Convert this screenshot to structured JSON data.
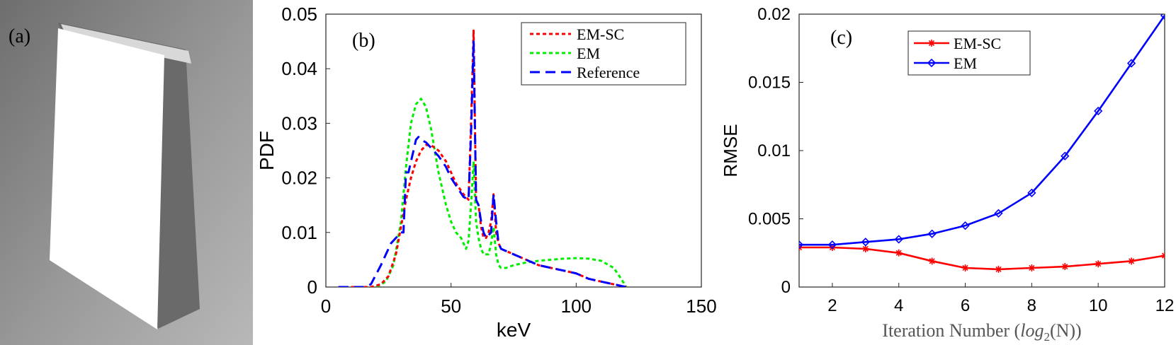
{
  "panels": {
    "a": {
      "label": "(a)"
    },
    "b": {
      "label": "(b)"
    },
    "c": {
      "label": "(c)"
    }
  },
  "colors": {
    "em_sc": "#ff0000",
    "em": "#00ee00",
    "reference": "#0000ff",
    "em_c": "#0000ff"
  },
  "chart_data": [
    {
      "type": "line",
      "panel": "b",
      "title": "",
      "xlabel": "keV",
      "ylabel": "PDF",
      "xlim": [
        0,
        150
      ],
      "ylim": [
        0,
        0.05
      ],
      "xticks": [
        0,
        50,
        100,
        150
      ],
      "xtick_labels": [
        "0",
        "50",
        "100",
        "150"
      ],
      "yticks": [
        0,
        0.01,
        0.02,
        0.03,
        0.04,
        0.05
      ],
      "ytick_labels": [
        "0",
        "0.01",
        "0.02",
        "0.03",
        "0.04",
        "0.05"
      ],
      "grid": false,
      "legend_position": "top-right",
      "series": [
        {
          "name": "EM-SC",
          "style": "dotted",
          "x": [
            5,
            18,
            22,
            25,
            28,
            30,
            32,
            34,
            36,
            38,
            40,
            42,
            45,
            48,
            50,
            52,
            55,
            57,
            58,
            59,
            60,
            61,
            62,
            63,
            64,
            65,
            66,
            67,
            68,
            69,
            70,
            75,
            80,
            85,
            90,
            95,
            100,
            105,
            110,
            115,
            120
          ],
          "y": [
            0,
            0,
            0.0005,
            0.002,
            0.006,
            0.011,
            0.016,
            0.02,
            0.023,
            0.025,
            0.026,
            0.026,
            0.025,
            0.023,
            0.021,
            0.019,
            0.017,
            0.016,
            0.03,
            0.047,
            0.016,
            0.015,
            0.011,
            0.009,
            0.009,
            0.01,
            0.012,
            0.017,
            0.01,
            0.008,
            0.007,
            0.006,
            0.005,
            0.004,
            0.0035,
            0.003,
            0.0025,
            0.0015,
            0.001,
            0.0005,
            0
          ]
        },
        {
          "name": "EM",
          "style": "dotted",
          "x": [
            5,
            20,
            24,
            27,
            30,
            32,
            34,
            36,
            38,
            40,
            42,
            45,
            48,
            50,
            52,
            54,
            56,
            57,
            58,
            59,
            60,
            61,
            62,
            63,
            65,
            66,
            67,
            68,
            69,
            70,
            72,
            75,
            80,
            85,
            90,
            95,
            100,
            105,
            110,
            115,
            118,
            120
          ],
          "y": [
            0,
            0,
            0.001,
            0.004,
            0.012,
            0.022,
            0.03,
            0.0335,
            0.0345,
            0.033,
            0.029,
            0.021,
            0.015,
            0.012,
            0.01,
            0.009,
            0.007,
            0.0085,
            0.015,
            0.023,
            0.012,
            0.009,
            0.007,
            0.006,
            0.006,
            0.008,
            0.011,
            0.006,
            0.004,
            0.0035,
            0.0035,
            0.004,
            0.0045,
            0.0048,
            0.005,
            0.0052,
            0.0053,
            0.0052,
            0.0048,
            0.0035,
            0.0015,
            0
          ]
        },
        {
          "name": "Reference",
          "style": "dashed",
          "x": [
            5,
            15,
            18,
            22,
            26,
            30,
            31,
            32,
            33,
            34,
            35,
            36,
            37,
            38,
            40,
            42,
            45,
            48,
            50,
            55,
            57,
            58,
            59,
            60,
            61,
            62,
            63,
            64,
            66,
            67,
            68,
            69,
            70,
            75,
            80,
            85,
            90,
            95,
            100,
            105,
            110,
            115,
            120
          ],
          "y": [
            0,
            0,
            0.0005,
            0.004,
            0.008,
            0.01,
            0.01,
            0.021,
            0.021,
            0.023,
            0.025,
            0.027,
            0.0275,
            0.027,
            0.0265,
            0.0255,
            0.024,
            0.022,
            0.02,
            0.0165,
            0.016,
            0.028,
            0.045,
            0.016,
            0.015,
            0.012,
            0.01,
            0.009,
            0.01,
            0.017,
            0.012,
            0.008,
            0.007,
            0.006,
            0.005,
            0.004,
            0.0035,
            0.003,
            0.0025,
            0.0015,
            0.001,
            0.0005,
            0
          ]
        }
      ]
    },
    {
      "type": "line",
      "panel": "c",
      "title": "",
      "xlabel": "Iteration Number (log2(N))",
      "xlabel_parts": {
        "text": "Iteration Number ",
        "open": "(",
        "func": "log",
        "sub": "2",
        "arg": "(N))"
      },
      "ylabel": "RMSE",
      "xlim": [
        1,
        12
      ],
      "ylim": [
        0,
        0.02
      ],
      "xticks": [
        2,
        4,
        6,
        8,
        10,
        12
      ],
      "xtick_labels": [
        "2",
        "4",
        "6",
        "8",
        "10",
        "12"
      ],
      "yticks": [
        0,
        0.005,
        0.01,
        0.015,
        0.02
      ],
      "ytick_labels": [
        "0",
        "0.005",
        "0.01",
        "0.015",
        "0.02"
      ],
      "grid": false,
      "legend_position": "top-center",
      "series": [
        {
          "name": "EM-SC",
          "marker": "asterisk",
          "x": [
            1,
            2,
            3,
            4,
            5,
            6,
            7,
            8,
            9,
            10,
            11,
            12
          ],
          "y": [
            0.0029,
            0.0029,
            0.0028,
            0.0025,
            0.0019,
            0.0014,
            0.0013,
            0.0014,
            0.0015,
            0.0017,
            0.0019,
            0.0023
          ]
        },
        {
          "name": "EM",
          "marker": "diamond",
          "x": [
            1,
            2,
            3,
            4,
            5,
            6,
            7,
            8,
            9,
            10,
            11,
            12
          ],
          "y": [
            0.0031,
            0.0031,
            0.0033,
            0.0035,
            0.0039,
            0.0045,
            0.0054,
            0.0069,
            0.0096,
            0.0129,
            0.0164,
            0.0199
          ]
        }
      ]
    }
  ]
}
